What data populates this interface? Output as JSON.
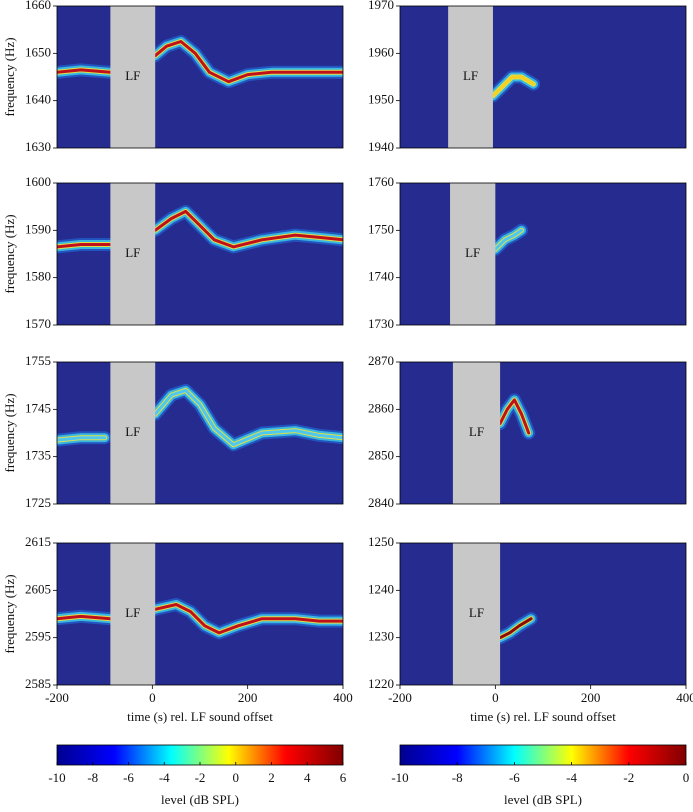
{
  "chart_data": [
    {
      "type": "spectrogram",
      "ylabel": "frequency (Hz)",
      "xlim": [
        -200,
        400
      ],
      "ylim": [
        1630,
        1660
      ],
      "yticks": [
        1630,
        1640,
        1650,
        1660
      ],
      "lf_interval": [
        -88,
        6
      ],
      "annotation": "LF",
      "series": [
        {
          "color": "#c0101a",
          "x": [
            -200,
            -150,
            -88,
            null,
            6,
            30,
            60,
            90,
            120,
            160,
            200,
            250,
            300,
            350,
            400
          ],
          "values": [
            1646,
            1646.5,
            1646,
            null,
            1649.5,
            1651.5,
            1652.5,
            1650,
            1646,
            1644,
            1645.5,
            1646,
            1646,
            1646,
            1646
          ]
        }
      ]
    },
    {
      "type": "spectrogram",
      "xlim": [
        -200,
        400
      ],
      "ylim": [
        1940,
        1970
      ],
      "yticks": [
        1940,
        1950,
        1960,
        1970
      ],
      "lf_interval": [
        -99,
        -5
      ],
      "annotation": "LF",
      "series": [
        {
          "color": "#f5d020",
          "x": [
            -5,
            15,
            35,
            55,
            80
          ],
          "values": [
            1951,
            1953,
            1955,
            1955,
            1953.5
          ]
        }
      ]
    },
    {
      "type": "spectrogram",
      "ylabel": "frequency (Hz)",
      "xlim": [
        -200,
        400
      ],
      "ylim": [
        1570,
        1600
      ],
      "yticks": [
        1570,
        1580,
        1590,
        1600
      ],
      "lf_interval": [
        -88,
        6
      ],
      "annotation": "LF",
      "series": [
        {
          "color": "#c0101a",
          "x": [
            -200,
            -150,
            -88,
            null,
            6,
            40,
            70,
            100,
            130,
            170,
            230,
            300,
            350,
            400
          ],
          "values": [
            1586.5,
            1587,
            1587,
            null,
            1590,
            1592.5,
            1594,
            1591,
            1588,
            1586.5,
            1588,
            1589,
            1588.5,
            1588
          ]
        }
      ]
    },
    {
      "type": "spectrogram",
      "xlim": [
        -200,
        400
      ],
      "ylim": [
        1730,
        1760
      ],
      "yticks": [
        1730,
        1740,
        1750,
        1760
      ],
      "lf_interval": [
        -95,
        0
      ],
      "annotation": "LF",
      "series": [
        {
          "color": "#4fc8f0",
          "x": [
            0,
            20,
            40,
            55
          ],
          "values": [
            1746,
            1748,
            1749,
            1750
          ]
        }
      ]
    },
    {
      "type": "spectrogram",
      "ylabel": "frequency (Hz)",
      "xlim": [
        -200,
        400
      ],
      "ylim": [
        1725,
        1755
      ],
      "yticks": [
        1725,
        1735,
        1745,
        1755
      ],
      "lf_interval": [
        -88,
        6
      ],
      "annotation": "LF",
      "series": [
        {
          "color": "#4fc8f0",
          "x": [
            -200,
            -150,
            -100,
            null,
            6,
            40,
            70,
            100,
            130,
            170,
            230,
            300,
            350,
            400
          ],
          "values": [
            1738.5,
            1739,
            1739,
            null,
            1744,
            1748,
            1749,
            1746,
            1741,
            1737.5,
            1740,
            1740.5,
            1739.5,
            1739
          ]
        }
      ]
    },
    {
      "type": "spectrogram",
      "xlim": [
        -200,
        400
      ],
      "ylim": [
        2840,
        2870
      ],
      "yticks": [
        2840,
        2850,
        2860,
        2870
      ],
      "lf_interval": [
        -89,
        10
      ],
      "annotation": "LF",
      "series": [
        {
          "color": "#c0101a",
          "x": [
            10,
            25,
            40,
            55,
            70
          ],
          "values": [
            2857,
            2860,
            2862,
            2859,
            2855
          ]
        }
      ]
    },
    {
      "type": "spectrogram",
      "ylabel": "frequency (Hz)",
      "xlabel": "time (s) rel. LF sound offset",
      "xlim": [
        -200,
        400
      ],
      "ylim": [
        2585,
        2615
      ],
      "yticks": [
        2585,
        2595,
        2605,
        2615
      ],
      "xticks": [
        -200,
        0,
        200,
        400
      ],
      "lf_interval": [
        -88,
        6
      ],
      "annotation": "LF",
      "series": [
        {
          "color": "#c0101a",
          "x": [
            -200,
            -150,
            -88,
            null,
            6,
            50,
            80,
            110,
            140,
            180,
            230,
            300,
            350,
            400
          ],
          "values": [
            2599,
            2599.5,
            2599,
            null,
            2601,
            2602,
            2600.5,
            2597.5,
            2596,
            2597.5,
            2599,
            2599,
            2598.5,
            2598.5
          ]
        }
      ]
    },
    {
      "type": "spectrogram",
      "xlabel": "time (s) rel. LF sound offset",
      "xlim": [
        -200,
        400
      ],
      "ylim": [
        1220,
        1250
      ],
      "yticks": [
        1220,
        1230,
        1240,
        1250
      ],
      "xticks": [
        -200,
        0,
        200,
        400
      ],
      "lf_interval": [
        -89,
        10
      ],
      "annotation": "LF",
      "series": [
        {
          "color": "#8c0a0a",
          "x": [
            10,
            30,
            50,
            75
          ],
          "values": [
            1230,
            1231,
            1232.5,
            1234
          ]
        }
      ]
    },
    {
      "type": "colorbar",
      "xlabel": "level (dB SPL)",
      "xlim": [
        -10,
        6
      ],
      "xticks": [
        -10,
        -8,
        -6,
        -4,
        -2,
        0,
        2,
        4,
        6
      ],
      "colors": [
        "#00008f",
        "#0000ff",
        "#00ffff",
        "#ffff00",
        "#ff0000",
        "#800000"
      ]
    },
    {
      "type": "colorbar",
      "xlabel": "level (dB SPL)",
      "xlim": [
        -10,
        0
      ],
      "xticks": [
        -10,
        -8,
        -6,
        -4,
        -2,
        0
      ],
      "colors": [
        "#00008f",
        "#0000ff",
        "#00ffff",
        "#ffff00",
        "#ff0000",
        "#800000"
      ]
    }
  ]
}
